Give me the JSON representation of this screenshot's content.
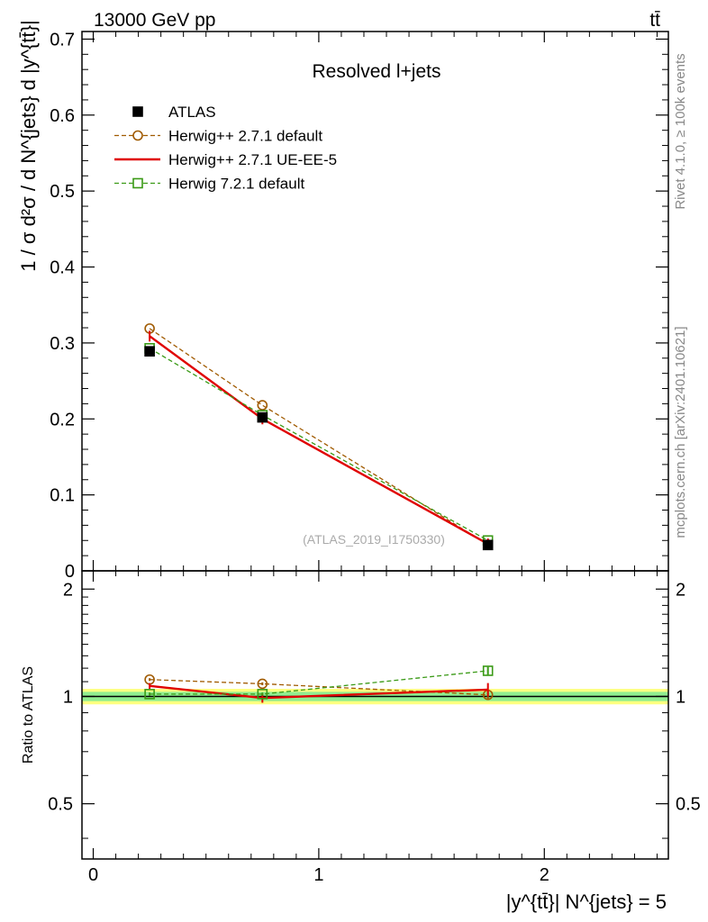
{
  "header": {
    "left": "13000 GeV pp",
    "right": "tt̄"
  },
  "side_labels": {
    "rivet": "Rivet 4.1.0, ≥ 100k events",
    "mcplots": "mcplots.cern.ch [arXiv:2401.10621]"
  },
  "chart_data": {
    "type": "line",
    "title": "Resolved l+jets",
    "analysis_id": "(ATLAS_2019_I1750330)",
    "ylabel": "1 / σ d²σ / d N^{jets} d |y^{tt̄}|",
    "xlabel": "|y^{tt̄}| N^{jets} = 5",
    "ratio_ylabel": "Ratio to ATLAS",
    "xlim": [
      -0.05,
      2.55
    ],
    "ylim": [
      0,
      0.71
    ],
    "ratio_ylim": [
      0.35,
      2.25
    ],
    "x_ticks": [
      "0",
      "1",
      "2"
    ],
    "y_ticks": [
      "0",
      "0.1",
      "0.2",
      "0.3",
      "0.4",
      "0.5",
      "0.6",
      "0.7"
    ],
    "ratio_y_ticks": [
      "0.5",
      "1",
      "2"
    ],
    "bins": [
      0.25,
      0.75,
      1.75
    ],
    "legend": [
      {
        "name": "ATLAS",
        "marker": "filled-square",
        "color": "#000000"
      },
      {
        "name": "Herwig++ 2.7.1 default",
        "marker": "open-circle",
        "color": "#a05a00"
      },
      {
        "name": "Herwig++ 2.7.1 UE-EE-5",
        "marker": "line",
        "color": "#e00000"
      },
      {
        "name": "Herwig 7.2.1 default",
        "marker": "open-square",
        "color": "#3a9a16"
      }
    ],
    "data": {
      "name": "ATLAS",
      "values": [
        0.289,
        0.202,
        0.034
      ],
      "errors": [
        0.003,
        0.003,
        0.001
      ]
    },
    "series": [
      {
        "name": "Herwig++ 2.7.1 default",
        "values": [
          0.319,
          0.218,
          0.0345
        ],
        "ratio": [
          1.115,
          1.085,
          1.01
        ],
        "ratio_err": [
          0.01,
          0.01,
          0.025
        ]
      },
      {
        "name": "Herwig++ 2.7.1 UE-EE-5",
        "values": [
          0.309,
          0.2,
          0.0355
        ],
        "ratio": [
          1.07,
          0.99,
          1.045
        ],
        "ratio_err": [
          0.02,
          0.03,
          0.045
        ]
      },
      {
        "name": "Herwig 7.2.1 default",
        "values": [
          0.293,
          0.205,
          0.04
        ],
        "ratio": [
          1.015,
          1.015,
          1.18
        ],
        "ratio_err": [
          0.01,
          0.01,
          0.03
        ]
      }
    ],
    "ratio_bands": {
      "inner": 0.03,
      "outer": 0.05
    }
  }
}
